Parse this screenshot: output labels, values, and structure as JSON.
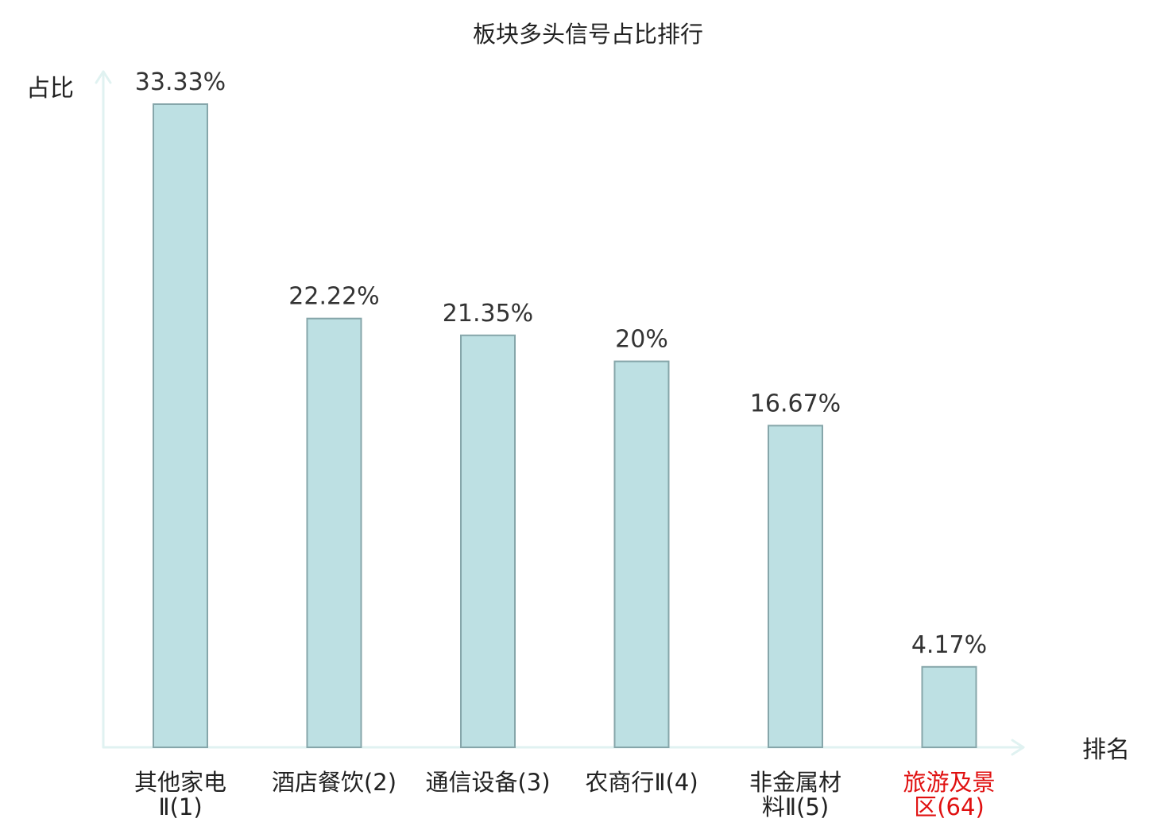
{
  "chart_data": {
    "type": "bar",
    "title": "板块多头信号占比排行",
    "ylabel": "占比",
    "xlabel": "排名",
    "ylim": [
      0,
      35
    ],
    "grid": false,
    "categories": [
      {
        "lines": [
          "其他家电",
          "Ⅱ(1)"
        ],
        "highlight": false
      },
      {
        "lines": [
          "酒店餐饮(2)"
        ],
        "highlight": false
      },
      {
        "lines": [
          "通信设备(3)"
        ],
        "highlight": false
      },
      {
        "lines": [
          "农商行Ⅱ(4)"
        ],
        "highlight": false
      },
      {
        "lines": [
          "非金属材",
          "料Ⅱ(5)"
        ],
        "highlight": false
      },
      {
        "lines": [
          "旅游及景",
          "区(64)"
        ],
        "highlight": true
      }
    ],
    "values": [
      33.33,
      22.22,
      21.35,
      20,
      16.67,
      4.17
    ],
    "value_labels": [
      "33.33%",
      "22.22%",
      "21.35%",
      "20%",
      "16.67%",
      "4.17%"
    ],
    "colors": {
      "bar_fill": "#bde0e3",
      "bar_stroke": "#86a6aa",
      "axis": "#e0f2f1",
      "text": "#222222",
      "value_text": "#333333",
      "highlight_text": "#e01010"
    }
  }
}
